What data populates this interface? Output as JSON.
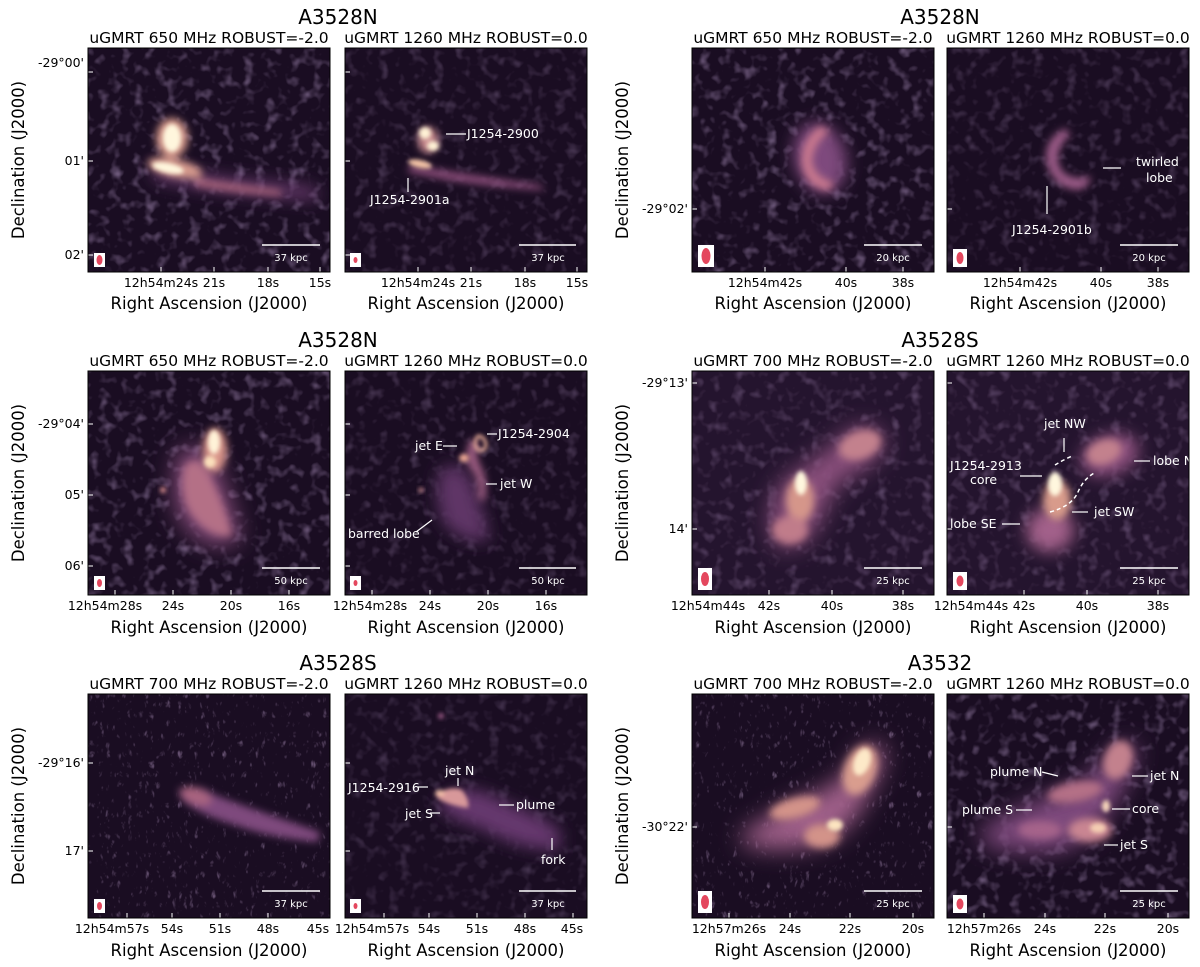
{
  "colors": {
    "background": "#1a0d22",
    "annotation": "#ffffff",
    "beam": "#e4475e"
  },
  "groups": [
    {
      "title": "A3528N",
      "panels": [
        {
          "title": "uGMRT 650 MHz ROBUST=-2.0",
          "scale_bar": "37 kpc",
          "annotations": []
        },
        {
          "title": "uGMRT 1260 MHz ROBUST=0.0",
          "scale_bar": "37 kpc",
          "annotations": [
            "J1254-2900",
            "J1254-2901a"
          ]
        }
      ],
      "ylabel": "Declination (J2000)",
      "xlabel": "Right Ascension (J2000)",
      "y_ticks": [
        "-29°00'",
        "01'",
        "02'"
      ],
      "x_ticks": [
        "12h54m24s",
        "21s",
        "18s",
        "15s"
      ]
    },
    {
      "title": "A3528N",
      "panels": [
        {
          "title": "uGMRT 650 MHz ROBUST=-2.0",
          "scale_bar": "20 kpc",
          "annotations": []
        },
        {
          "title": "uGMRT 1260 MHz ROBUST=0.0",
          "scale_bar": "20 kpc",
          "annotations": [
            "twirled",
            "lobe",
            "J1254-2901b"
          ]
        }
      ],
      "ylabel": "Declination (J2000)",
      "xlabel": "Right Ascension (J2000)",
      "y_ticks": [
        "-29°02'"
      ],
      "x_ticks": [
        "12h54m42s",
        "40s",
        "38s"
      ]
    },
    {
      "title": "A3528N",
      "panels": [
        {
          "title": "uGMRT 650 MHz ROBUST=-2.0",
          "scale_bar": "50 kpc",
          "annotations": []
        },
        {
          "title": "uGMRT 1260 MHz ROBUST=0.0",
          "scale_bar": "50 kpc",
          "annotations": [
            "J1254-2904",
            "jet E",
            "jet W",
            "barred lobe"
          ]
        }
      ],
      "ylabel": "Declination (J2000)",
      "xlabel": "Right Ascension (J2000)",
      "y_ticks": [
        "-29°04'",
        "05'",
        "06'"
      ],
      "x_ticks": [
        "12h54m28s",
        "24s",
        "20s",
        "16s"
      ]
    },
    {
      "title": "A3528S",
      "panels": [
        {
          "title": "uGMRT 700 MHz ROBUST=-2.0",
          "scale_bar": "25 kpc",
          "annotations": []
        },
        {
          "title": "uGMRT 1260 MHz ROBUST=0.0",
          "scale_bar": "25 kpc",
          "annotations": [
            "jet NW",
            "J1254-2913",
            "core",
            "lobe N",
            "jet SW",
            "lobe SE"
          ]
        }
      ],
      "ylabel": "Declination (J2000)",
      "xlabel": "Right Ascension (J2000)",
      "y_ticks": [
        "-29°13'",
        "14'"
      ],
      "x_ticks": [
        "12h54m44s",
        "42s",
        "40s",
        "38s"
      ]
    },
    {
      "title": "A3528S",
      "panels": [
        {
          "title": "uGMRT 700 MHz ROBUST=-2.0",
          "scale_bar": "37 kpc",
          "annotations": []
        },
        {
          "title": "uGMRT 1260 MHz ROBUST=0.0",
          "scale_bar": "37 kpc",
          "annotations": [
            "jet N",
            "J1254-2916",
            "plume",
            "jet S",
            "fork"
          ]
        }
      ],
      "ylabel": "Declination (J2000)",
      "xlabel": "Right Ascension (J2000)",
      "y_ticks": [
        "-29°16'",
        "17'"
      ],
      "x_ticks": [
        "12h54m57s",
        "54s",
        "51s",
        "48s",
        "45s"
      ]
    },
    {
      "title": "A3532",
      "panels": [
        {
          "title": "uGMRT 700 MHz ROBUST=-2.0",
          "scale_bar": "25 kpc",
          "annotations": []
        },
        {
          "title": "uGMRT 1260 MHz ROBUST=0.0",
          "scale_bar": "25 kpc",
          "annotations": [
            "plume N",
            "jet N",
            "plume S",
            "core",
            "jet S"
          ]
        }
      ],
      "ylabel": "Declination (J2000)",
      "xlabel": "Right Ascension (J2000)",
      "y_ticks": [
        "-30°22'"
      ],
      "x_ticks": [
        "12h57m26s",
        "24s",
        "22s",
        "20s"
      ]
    }
  ]
}
